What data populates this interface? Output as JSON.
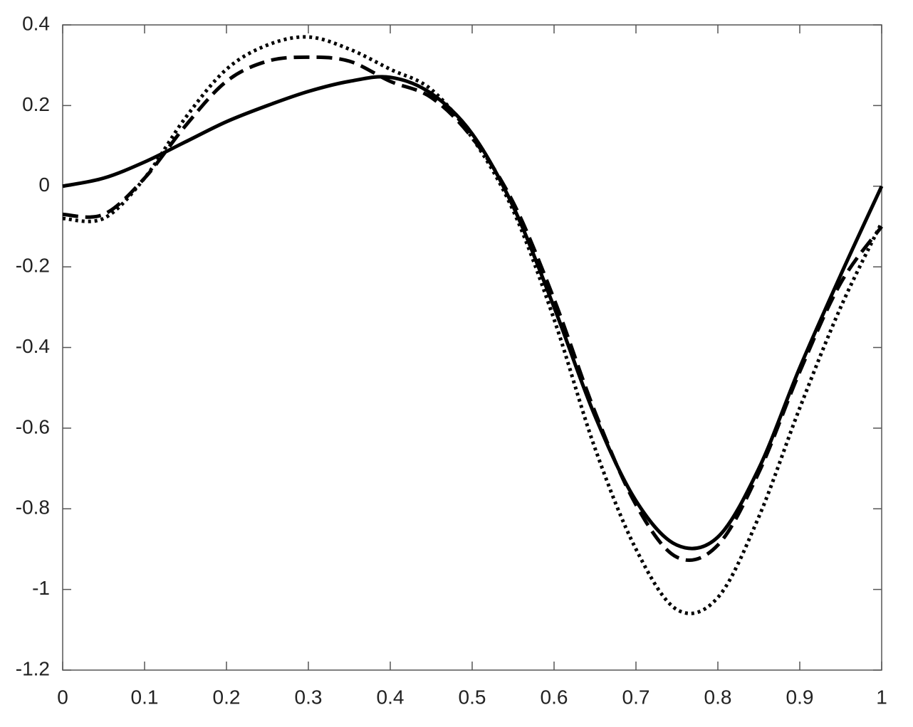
{
  "chart_data": {
    "type": "line",
    "x": [
      0,
      0.05,
      0.1,
      0.15,
      0.2,
      0.25,
      0.3,
      0.35,
      0.4,
      0.45,
      0.5,
      0.55,
      0.6,
      0.65,
      0.7,
      0.75,
      0.8,
      0.85,
      0.9,
      0.95,
      1
    ],
    "series": [
      {
        "color": "#000000",
        "line_style": "solid",
        "values": [
          0,
          0.02,
          0.06,
          0.11,
          0.16,
          0.2,
          0.235,
          0.26,
          0.27,
          0.23,
          0.13,
          -0.05,
          -0.3,
          -0.57,
          -0.78,
          -0.89,
          -0.87,
          -0.7,
          -0.45,
          -0.22,
          0
        ]
      },
      {
        "color": "#000000",
        "line_style": "dashed",
        "values": [
          -0.07,
          -0.07,
          0.02,
          0.15,
          0.26,
          0.31,
          0.32,
          0.31,
          0.26,
          0.22,
          0.12,
          -0.04,
          -0.28,
          -0.56,
          -0.79,
          -0.92,
          -0.89,
          -0.71,
          -0.46,
          -0.24,
          -0.1
        ]
      },
      {
        "color": "#000000",
        "line_style": "dotted",
        "values": [
          -0.08,
          -0.08,
          0.02,
          0.17,
          0.29,
          0.35,
          0.37,
          0.34,
          0.29,
          0.24,
          0.12,
          -0.06,
          -0.33,
          -0.65,
          -0.9,
          -1.05,
          -1.02,
          -0.82,
          -0.55,
          -0.3,
          -0.09
        ]
      }
    ],
    "xlim": [
      0,
      1
    ],
    "xticks": [
      0,
      0.1,
      0.2,
      0.3,
      0.4,
      0.5,
      0.6,
      0.7,
      0.8,
      0.9,
      1
    ],
    "ylim": [
      -1.2,
      0.4
    ],
    "yticks": [
      -1.2,
      -1,
      -0.8,
      -0.6,
      -0.4,
      -0.2,
      0,
      0.2,
      0.4
    ],
    "grid": false
  }
}
